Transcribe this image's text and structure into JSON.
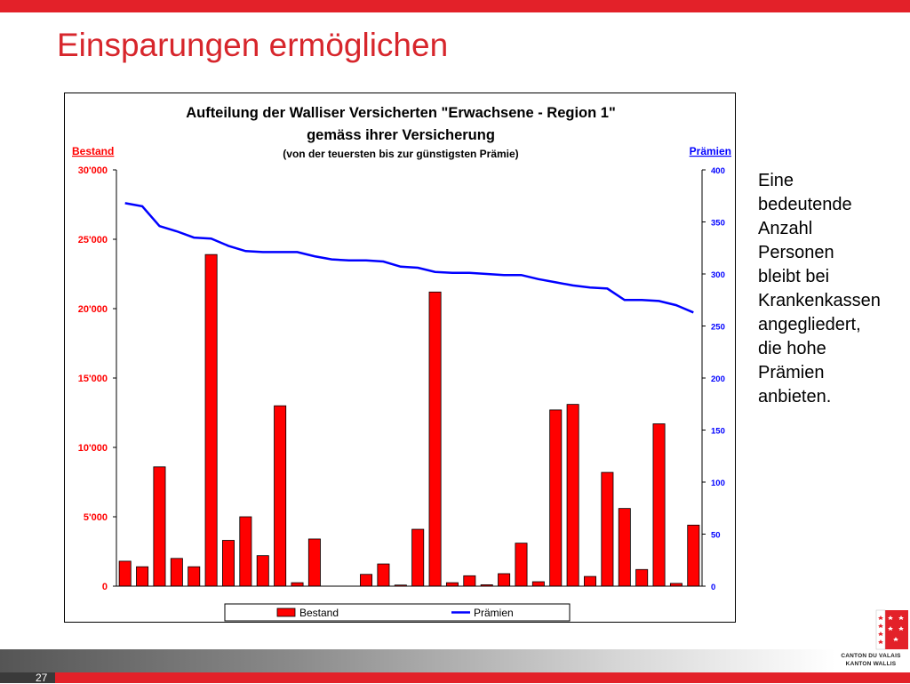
{
  "slide": {
    "title": "Einsparungen ermöglichen",
    "page_number": "27",
    "side_text_lines": [
      "Eine",
      "bedeutende",
      "Anzahl",
      "Personen",
      "bleibt bei",
      "Krankenkassen",
      "angegliedert,",
      "die hohe",
      "Prämien",
      "anbieten."
    ],
    "logo_lines": [
      "CANTON DU VALAIS",
      "KANTON WALLIS"
    ],
    "colors": {
      "accent_red": "#e32129",
      "title_red": "#d7262c",
      "bar_red": "#ff0000",
      "line_blue": "#0000ff"
    }
  },
  "chart_data": {
    "type": "bar",
    "title": "Aufteilung der Walliser Versicherten \"Erwachsene - Region 1\"",
    "title_line2": "gemäss ihrer Versicherung",
    "subtitle": "(von der teuersten bis zur günstigsten Prämie)",
    "ylabel_left": "Bestand",
    "ylabel_right": "Prämien",
    "ylim_left": [
      0,
      30000
    ],
    "ylim_right": [
      0,
      400
    ],
    "yticks_left": [
      "0",
      "5'000",
      "10'000",
      "15'000",
      "20'000",
      "25'000",
      "30'000"
    ],
    "yticks_right": [
      "0",
      "50",
      "100",
      "150",
      "200",
      "250",
      "300",
      "350",
      "400"
    ],
    "legend_position": "bottom",
    "series": [
      {
        "name": "Bestand",
        "kind": "bar",
        "axis": "left",
        "values": [
          1800,
          1400,
          8600,
          2000,
          1400,
          23900,
          3300,
          5000,
          2200,
          13000,
          250,
          3400,
          0,
          0,
          850,
          1600,
          80,
          4100,
          21200,
          250,
          750,
          100,
          900,
          3100,
          320,
          12700,
          13100,
          700,
          8200,
          5600,
          1200,
          11700,
          200,
          4400
        ]
      },
      {
        "name": "Prämien",
        "kind": "line",
        "axis": "right",
        "values": [
          368,
          365,
          346,
          341,
          335,
          334,
          327,
          322,
          321,
          321,
          321,
          317,
          314,
          313,
          313,
          312,
          307,
          306,
          302,
          301,
          301,
          300,
          299,
          299,
          295,
          292,
          289,
          287,
          286,
          275,
          275,
          274,
          270,
          263
        ]
      }
    ]
  }
}
